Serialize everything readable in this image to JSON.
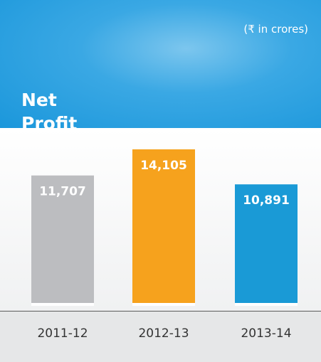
{
  "chart_data": {
    "type": "bar",
    "title": "Net Profit",
    "subtitle": "(₹ in crores)",
    "categories": [
      "2011-12",
      "2012-13",
      "2013-14"
    ],
    "values": [
      11707,
      14105,
      10891
    ],
    "value_labels": [
      "11,707",
      "14,105",
      "10,891"
    ],
    "colors": [
      "#bcbdc0",
      "#f6a21d",
      "#1a9ad6"
    ]
  }
}
